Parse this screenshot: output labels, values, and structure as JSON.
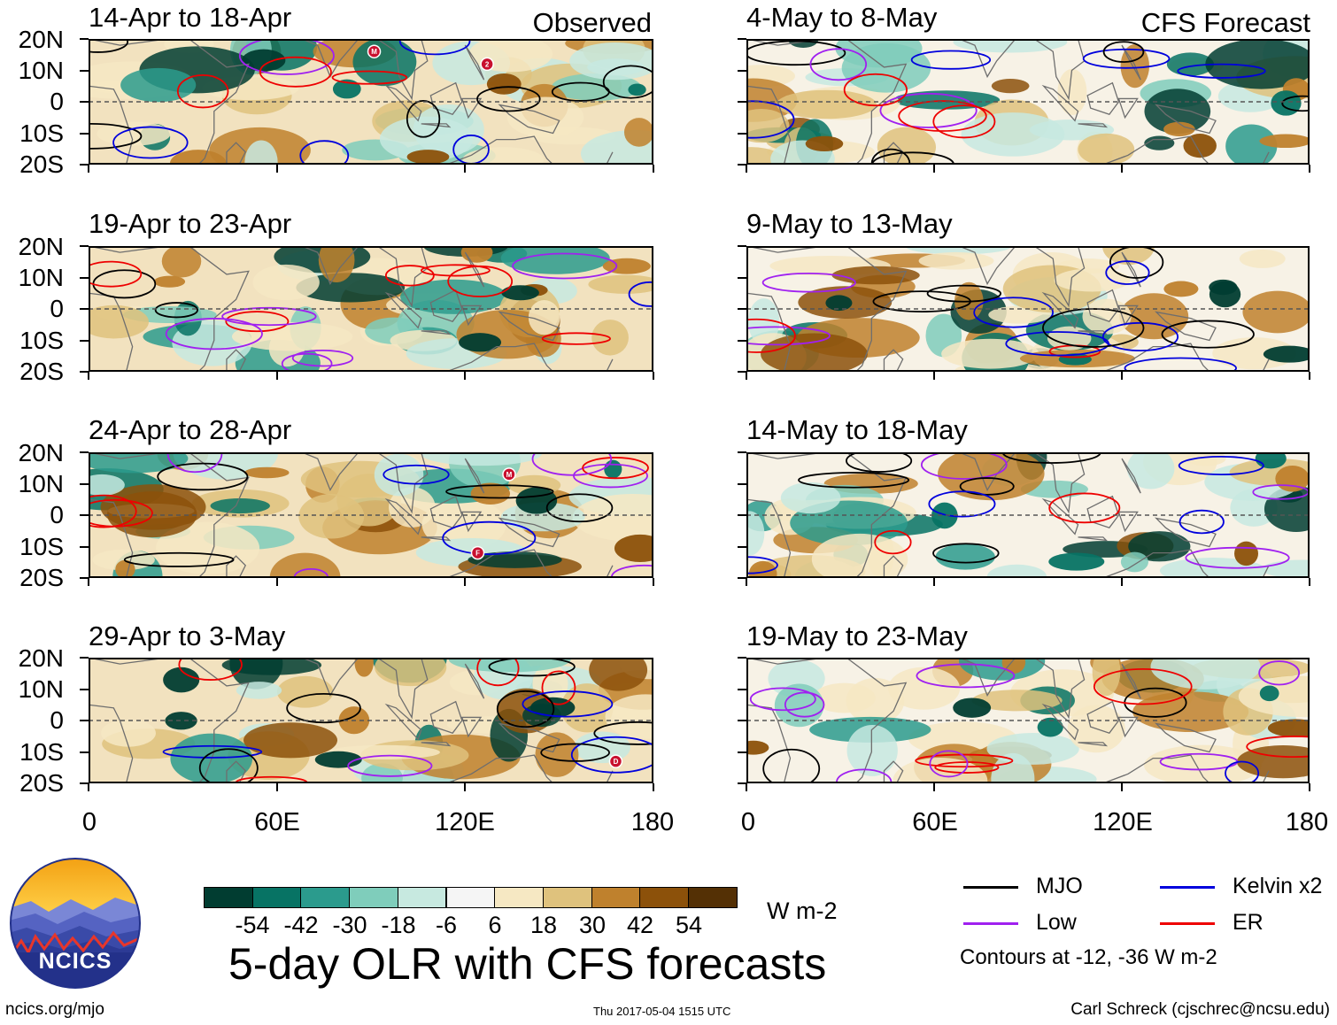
{
  "panels_left": [
    {
      "title": "14-Apr to 18-Apr",
      "tag": "Observed"
    },
    {
      "title": "19-Apr to 23-Apr",
      "tag": ""
    },
    {
      "title": "24-Apr to 28-Apr",
      "tag": ""
    },
    {
      "title": "29-Apr to 3-May",
      "tag": ""
    }
  ],
  "panels_right": [
    {
      "title": "4-May to 8-May",
      "tag": "CFS Forecast"
    },
    {
      "title": "9-May to 13-May",
      "tag": ""
    },
    {
      "title": "14-May to 18-May",
      "tag": ""
    },
    {
      "title": "19-May to 23-May",
      "tag": ""
    }
  ],
  "y_ticks": [
    "20N",
    "10N",
    "0",
    "10S",
    "20S"
  ],
  "x_ticks": [
    "0",
    "60E",
    "120E",
    "180"
  ],
  "storm_markers": {
    "p0": [
      "M",
      "2"
    ],
    "p2": [
      "M",
      "F"
    ],
    "p3": [
      "D"
    ]
  },
  "colorbar": {
    "colors": [
      "#013d31",
      "#077364",
      "#2b9b8d",
      "#7fcdbb",
      "#c7e9e0",
      "#f5f5f5",
      "#f6e8c3",
      "#dfc27d",
      "#bf812d",
      "#8c510a",
      "#543005"
    ],
    "labels": [
      "-54",
      "-42",
      "-30",
      "-18",
      "-6",
      "6",
      "18",
      "30",
      "42",
      "54"
    ],
    "units": "W m-2"
  },
  "main_title": "5-day OLR with CFS forecasts",
  "legend": {
    "items": [
      {
        "label": "MJO",
        "color": "#000000"
      },
      {
        "label": "Kelvin x2",
        "color": "#0000dd"
      },
      {
        "label": "Low",
        "color": "#a020f0"
      },
      {
        "label": "ER",
        "color": "#ee0000"
      }
    ],
    "note": "Contours at -12, -36 W m-2"
  },
  "logo_text": "NCICS",
  "footer": {
    "left": "ncics.org/mjo",
    "center": "Thu 2017-05-04 1515 UTC",
    "right": "Carl Schreck (cjschrec@ncsu.edu)"
  }
}
